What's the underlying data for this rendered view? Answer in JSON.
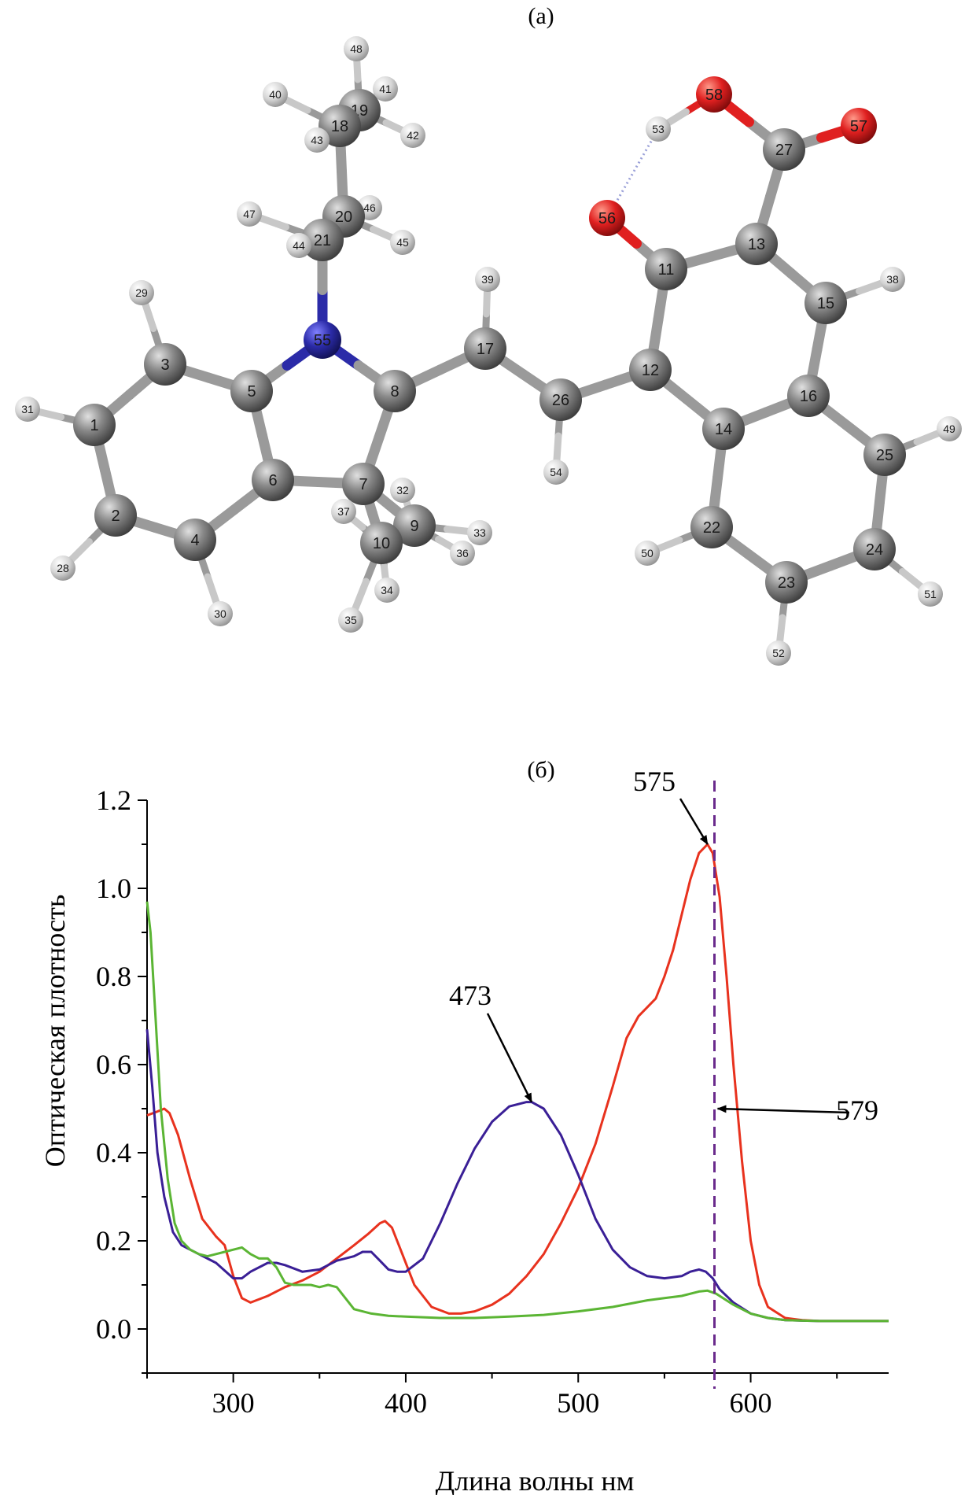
{
  "panel_a": {
    "label": "(а)",
    "atom_colors": {
      "C": "#7a7a7a",
      "H": "#dcdcdc",
      "N": "#2b2ba8",
      "O": "#e02020"
    },
    "atoms": [
      {
        "id": "1",
        "el": "C"
      },
      {
        "id": "2",
        "el": "C"
      },
      {
        "id": "3",
        "el": "C"
      },
      {
        "id": "4",
        "el": "C"
      },
      {
        "id": "5",
        "el": "C"
      },
      {
        "id": "6",
        "el": "C"
      },
      {
        "id": "7",
        "el": "C"
      },
      {
        "id": "8",
        "el": "C"
      },
      {
        "id": "9",
        "el": "C"
      },
      {
        "id": "10",
        "el": "C"
      },
      {
        "id": "11",
        "el": "C"
      },
      {
        "id": "12",
        "el": "C"
      },
      {
        "id": "13",
        "el": "C"
      },
      {
        "id": "14",
        "el": "C"
      },
      {
        "id": "15",
        "el": "C"
      },
      {
        "id": "16",
        "el": "C"
      },
      {
        "id": "17",
        "el": "C"
      },
      {
        "id": "18",
        "el": "C"
      },
      {
        "id": "19",
        "el": "C"
      },
      {
        "id": "20",
        "el": "C"
      },
      {
        "id": "21",
        "el": "C"
      },
      {
        "id": "22",
        "el": "C"
      },
      {
        "id": "23",
        "el": "C"
      },
      {
        "id": "24",
        "el": "C"
      },
      {
        "id": "25",
        "el": "C"
      },
      {
        "id": "26",
        "el": "C"
      },
      {
        "id": "27",
        "el": "C"
      },
      {
        "id": "28",
        "el": "H"
      },
      {
        "id": "29",
        "el": "H"
      },
      {
        "id": "30",
        "el": "H"
      },
      {
        "id": "31",
        "el": "H"
      },
      {
        "id": "32",
        "el": "H"
      },
      {
        "id": "33",
        "el": "H"
      },
      {
        "id": "34",
        "el": "H"
      },
      {
        "id": "35",
        "el": "H"
      },
      {
        "id": "36",
        "el": "H"
      },
      {
        "id": "37",
        "el": "H"
      },
      {
        "id": "38",
        "el": "H"
      },
      {
        "id": "39",
        "el": "H"
      },
      {
        "id": "40",
        "el": "H"
      },
      {
        "id": "41",
        "el": "H"
      },
      {
        "id": "42",
        "el": "H"
      },
      {
        "id": "43",
        "el": "H"
      },
      {
        "id": "44",
        "el": "H"
      },
      {
        "id": "45",
        "el": "H"
      },
      {
        "id": "46",
        "el": "H"
      },
      {
        "id": "47",
        "el": "H"
      },
      {
        "id": "48",
        "el": "H"
      },
      {
        "id": "49",
        "el": "H"
      },
      {
        "id": "50",
        "el": "H"
      },
      {
        "id": "51",
        "el": "H"
      },
      {
        "id": "52",
        "el": "H"
      },
      {
        "id": "53",
        "el": "H"
      },
      {
        "id": "54",
        "el": "H"
      },
      {
        "id": "55",
        "el": "N"
      },
      {
        "id": "56",
        "el": "O"
      },
      {
        "id": "57",
        "el": "O"
      },
      {
        "id": "58",
        "el": "O"
      }
    ],
    "bonds": [
      [
        "1",
        "3"
      ],
      [
        "1",
        "2"
      ],
      [
        "2",
        "4"
      ],
      [
        "4",
        "6"
      ],
      [
        "6",
        "5"
      ],
      [
        "5",
        "3"
      ],
      [
        "5",
        "55"
      ],
      [
        "55",
        "8"
      ],
      [
        "8",
        "7"
      ],
      [
        "7",
        "6"
      ],
      [
        "55",
        "21"
      ],
      [
        "21",
        "20"
      ],
      [
        "20",
        "18"
      ],
      [
        "18",
        "19"
      ],
      [
        "8",
        "17"
      ],
      [
        "17",
        "26"
      ],
      [
        "26",
        "12"
      ],
      [
        "12",
        "11"
      ],
      [
        "11",
        "13"
      ],
      [
        "13",
        "15"
      ],
      [
        "15",
        "16"
      ],
      [
        "16",
        "14"
      ],
      [
        "14",
        "12"
      ],
      [
        "14",
        "22"
      ],
      [
        "22",
        "23"
      ],
      [
        "23",
        "24"
      ],
      [
        "24",
        "25"
      ],
      [
        "25",
        "16"
      ],
      [
        "13",
        "27"
      ],
      [
        "27",
        "57"
      ],
      [
        "27",
        "58"
      ],
      [
        "58",
        "53"
      ],
      [
        "11",
        "56"
      ],
      [
        "7",
        "9"
      ],
      [
        "7",
        "10"
      ],
      [
        "1",
        "31"
      ],
      [
        "2",
        "28"
      ],
      [
        "3",
        "29"
      ],
      [
        "4",
        "30"
      ],
      [
        "17",
        "39"
      ],
      [
        "26",
        "54"
      ],
      [
        "15",
        "38"
      ],
      [
        "25",
        "49"
      ],
      [
        "24",
        "51"
      ],
      [
        "23",
        "52"
      ],
      [
        "22",
        "50"
      ],
      [
        "9",
        "32"
      ],
      [
        "9",
        "33"
      ],
      [
        "9",
        "36"
      ],
      [
        "10",
        "34"
      ],
      [
        "10",
        "35"
      ],
      [
        "10",
        "37"
      ],
      [
        "18",
        "40"
      ],
      [
        "18",
        "43"
      ],
      [
        "19",
        "41"
      ],
      [
        "19",
        "42"
      ],
      [
        "19",
        "48"
      ],
      [
        "20",
        "45"
      ],
      [
        "20",
        "46"
      ],
      [
        "21",
        "47"
      ],
      [
        "21",
        "44"
      ]
    ],
    "hbond": [
      "53",
      "56"
    ]
  },
  "panel_b": {
    "label": "(б)",
    "chart_data": {
      "type": "line",
      "xlabel": "Длина волны нм",
      "ylabel": "Оптическая плотность",
      "xlim": [
        250,
        680
      ],
      "ylim": [
        -0.1,
        1.2
      ],
      "xticks": [
        "300",
        "400",
        "500",
        "600"
      ],
      "yticks": [
        "0.0",
        "0.2",
        "0.4",
        "0.6",
        "0.8",
        "1.0",
        "1.2"
      ],
      "series": [
        {
          "color": "#e8321e",
          "x": [
            250,
            255,
            260,
            263,
            268,
            275,
            282,
            290,
            295,
            300,
            305,
            310,
            320,
            330,
            340,
            350,
            360,
            370,
            378,
            385,
            388,
            392,
            398,
            405,
            415,
            425,
            432,
            440,
            450,
            460,
            470,
            480,
            490,
            500,
            510,
            520,
            528,
            535,
            540,
            545,
            550,
            555,
            560,
            565,
            570,
            575,
            578,
            582,
            586,
            590,
            595,
            600,
            605,
            610,
            620,
            630,
            640,
            660,
            680
          ],
          "y": [
            0.485,
            0.492,
            0.5,
            0.49,
            0.44,
            0.34,
            0.25,
            0.21,
            0.19,
            0.12,
            0.07,
            0.06,
            0.075,
            0.095,
            0.11,
            0.13,
            0.16,
            0.19,
            0.215,
            0.24,
            0.245,
            0.23,
            0.17,
            0.1,
            0.05,
            0.035,
            0.035,
            0.04,
            0.055,
            0.08,
            0.12,
            0.17,
            0.24,
            0.32,
            0.42,
            0.55,
            0.66,
            0.71,
            0.73,
            0.75,
            0.8,
            0.86,
            0.94,
            1.02,
            1.08,
            1.1,
            1.08,
            0.98,
            0.8,
            0.6,
            0.38,
            0.2,
            0.1,
            0.05,
            0.025,
            0.02,
            0.018,
            0.018,
            0.018
          ]
        },
        {
          "color": "#3a1f96",
          "x": [
            250,
            253,
            256,
            260,
            265,
            270,
            280,
            290,
            300,
            305,
            310,
            320,
            325,
            330,
            340,
            350,
            360,
            370,
            375,
            380,
            385,
            390,
            395,
            400,
            410,
            420,
            430,
            440,
            450,
            460,
            470,
            473,
            480,
            490,
            500,
            510,
            520,
            530,
            540,
            550,
            560,
            565,
            570,
            574,
            578,
            582,
            590,
            600,
            610,
            620,
            640,
            660,
            680
          ],
          "y": [
            0.68,
            0.55,
            0.4,
            0.3,
            0.22,
            0.19,
            0.17,
            0.15,
            0.115,
            0.115,
            0.13,
            0.15,
            0.15,
            0.145,
            0.13,
            0.135,
            0.155,
            0.165,
            0.175,
            0.175,
            0.155,
            0.135,
            0.13,
            0.13,
            0.16,
            0.24,
            0.33,
            0.41,
            0.47,
            0.505,
            0.515,
            0.515,
            0.5,
            0.44,
            0.35,
            0.25,
            0.18,
            0.14,
            0.12,
            0.115,
            0.12,
            0.13,
            0.135,
            0.13,
            0.115,
            0.09,
            0.06,
            0.035,
            0.025,
            0.02,
            0.018,
            0.018,
            0.018
          ]
        },
        {
          "color": "#5bb534",
          "x": [
            250,
            252,
            255,
            258,
            262,
            266,
            270,
            275,
            280,
            285,
            290,
            295,
            300,
            305,
            310,
            315,
            320,
            325,
            330,
            335,
            340,
            345,
            350,
            355,
            360,
            365,
            370,
            380,
            390,
            400,
            420,
            440,
            460,
            480,
            500,
            520,
            540,
            550,
            560,
            570,
            575,
            580,
            590,
            600,
            610,
            620,
            640,
            660,
            680
          ],
          "y": [
            0.97,
            0.9,
            0.7,
            0.5,
            0.34,
            0.24,
            0.2,
            0.18,
            0.17,
            0.165,
            0.17,
            0.175,
            0.18,
            0.185,
            0.17,
            0.16,
            0.16,
            0.14,
            0.105,
            0.1,
            0.1,
            0.1,
            0.095,
            0.1,
            0.095,
            0.07,
            0.045,
            0.035,
            0.03,
            0.028,
            0.025,
            0.025,
            0.028,
            0.032,
            0.04,
            0.05,
            0.065,
            0.07,
            0.075,
            0.085,
            0.087,
            0.08,
            0.055,
            0.035,
            0.025,
            0.02,
            0.018,
            0.018,
            0.018
          ]
        }
      ],
      "dashed_line": {
        "x": 579,
        "color": "#6a2a8c"
      },
      "annotations": [
        {
          "text": "575",
          "point": [
            575,
            1.1
          ]
        },
        {
          "text": "473",
          "point": [
            473,
            0.515
          ]
        },
        {
          "text": "579",
          "point": [
            579,
            0.5
          ]
        }
      ]
    }
  }
}
